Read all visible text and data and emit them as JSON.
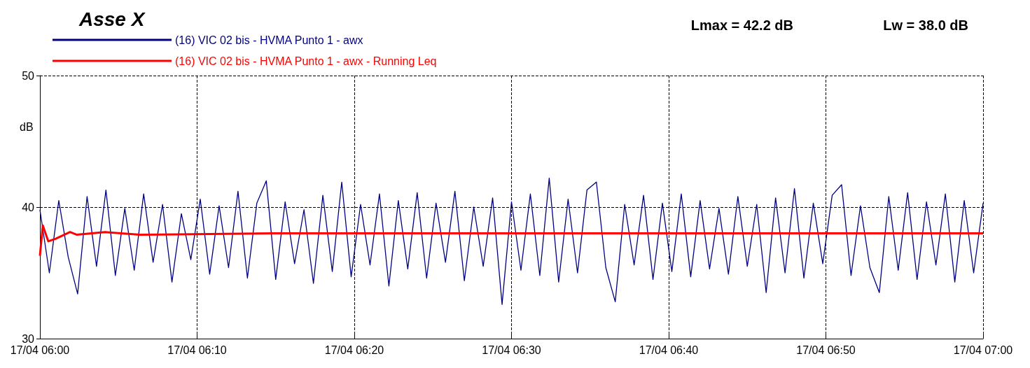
{
  "chart_data": {
    "type": "line",
    "title": "Asse X",
    "ylabel": "dB",
    "annotations": [
      "Lmax = 42.2 dB",
      "Lw = 38.0 dB"
    ],
    "xlim": [
      "--04-17T06:00",
      "--04-17T07:00"
    ],
    "xticks": [
      {
        "value": "--04-17T06:00",
        "label": "17/04 06:00"
      },
      {
        "value": "--04-17T06:10",
        "label": "17/04 06:10"
      },
      {
        "value": "--04-17T06:20",
        "label": "17/04 06:20"
      },
      {
        "value": "--04-17T06:30",
        "label": "17/04 06:30"
      },
      {
        "value": "--04-17T06:40",
        "label": "17/04 06:40"
      },
      {
        "value": "--04-17T06:50",
        "label": "17/04 06:50"
      },
      {
        "value": "--04-17T07:00",
        "label": "17/04 07:00"
      }
    ],
    "ylim": [
      30,
      50
    ],
    "yticks": [
      30,
      40,
      50
    ],
    "grid": true,
    "legend": "top left",
    "series": [
      {
        "name": "(16) VIC 02 bis - HVMA Punto 1 - awx",
        "color": "#000080",
        "x": [
          "--04-17T06:00:00",
          "--04-17T06:00:36",
          "--04-17T06:01:12",
          "--04-17T06:01:48",
          "--04-17T06:02:24",
          "--04-17T06:03:00",
          "--04-17T06:03:36",
          "--04-17T06:04:12",
          "--04-17T06:04:48",
          "--04-17T06:05:24",
          "--04-17T06:06:00",
          "--04-17T06:06:36",
          "--04-17T06:07:12",
          "--04-17T06:07:48",
          "--04-17T06:08:24",
          "--04-17T06:09:00",
          "--04-17T06:09:36",
          "--04-17T06:10:12",
          "--04-17T06:10:48",
          "--04-17T06:11:24",
          "--04-17T06:12:00",
          "--04-17T06:12:36",
          "--04-17T06:13:12",
          "--04-17T06:13:48",
          "--04-17T06:14:24",
          "--04-17T06:15:00",
          "--04-17T06:15:36",
          "--04-17T06:16:12",
          "--04-17T06:16:48",
          "--04-17T06:17:24",
          "--04-17T06:18:00",
          "--04-17T06:18:36",
          "--04-17T06:19:12",
          "--04-17T06:19:48",
          "--04-17T06:20:24",
          "--04-17T06:21:00",
          "--04-17T06:21:36",
          "--04-17T06:22:12",
          "--04-17T06:22:48",
          "--04-17T06:23:24",
          "--04-17T06:24:00",
          "--04-17T06:24:36",
          "--04-17T06:25:12",
          "--04-17T06:25:48",
          "--04-17T06:26:24",
          "--04-17T06:27:00",
          "--04-17T06:27:36",
          "--04-17T06:28:12",
          "--04-17T06:28:48",
          "--04-17T06:29:24",
          "--04-17T06:30:00",
          "--04-17T06:30:36",
          "--04-17T06:31:12",
          "--04-17T06:31:48",
          "--04-17T06:32:24",
          "--04-17T06:33:00",
          "--04-17T06:33:36",
          "--04-17T06:34:12",
          "--04-17T06:34:48",
          "--04-17T06:35:24",
          "--04-17T06:36:00",
          "--04-17T06:36:36",
          "--04-17T06:37:12",
          "--04-17T06:37:48",
          "--04-17T06:38:24",
          "--04-17T06:39:00",
          "--04-17T06:39:36",
          "--04-17T06:40:12",
          "--04-17T06:40:48",
          "--04-17T06:41:24",
          "--04-17T06:42:00",
          "--04-17T06:42:36",
          "--04-17T06:43:12",
          "--04-17T06:43:48",
          "--04-17T06:44:24",
          "--04-17T06:45:00",
          "--04-17T06:45:36",
          "--04-17T06:46:12",
          "--04-17T06:46:48",
          "--04-17T06:47:24",
          "--04-17T06:48:00",
          "--04-17T06:48:36",
          "--04-17T06:49:12",
          "--04-17T06:49:48",
          "--04-17T06:50:24",
          "--04-17T06:51:00",
          "--04-17T06:51:36",
          "--04-17T06:52:12",
          "--04-17T06:52:48",
          "--04-17T06:53:24",
          "--04-17T06:54:00",
          "--04-17T06:54:36",
          "--04-17T06:55:12",
          "--04-17T06:55:48",
          "--04-17T06:56:24",
          "--04-17T06:57:00",
          "--04-17T06:57:36",
          "--04-17T06:58:12",
          "--04-17T06:58:48",
          "--04-17T06:59:24",
          "--04-17T07:00:00"
        ],
        "values": [
          39.8,
          35.0,
          40.5,
          36.2,
          33.4,
          40.8,
          35.5,
          41.3,
          34.8,
          39.9,
          35.2,
          41.0,
          35.8,
          40.2,
          34.3,
          39.5,
          36.0,
          40.6,
          34.9,
          40.1,
          35.4,
          41.2,
          34.6,
          40.3,
          42.0,
          34.5,
          40.4,
          35.7,
          39.8,
          34.2,
          40.9,
          35.1,
          41.9,
          34.7,
          40.2,
          35.6,
          41.0,
          34.0,
          40.5,
          35.3,
          41.1,
          34.6,
          40.3,
          35.8,
          41.2,
          34.4,
          40.0,
          35.5,
          40.7,
          32.6,
          40.4,
          35.2,
          41.0,
          34.8,
          42.2,
          34.3,
          40.6,
          35.0,
          41.3,
          41.9,
          35.4,
          32.8,
          40.2,
          35.6,
          40.9,
          34.5,
          40.3,
          35.1,
          41.0,
          34.7,
          40.5,
          35.3,
          39.9,
          34.9,
          40.8,
          35.5,
          40.2,
          33.5,
          40.7,
          35.0,
          41.4,
          34.6,
          40.3,
          35.7,
          40.9,
          41.7,
          34.8,
          40.1,
          35.4,
          33.5,
          40.8,
          35.2,
          41.1,
          34.5,
          40.4,
          35.6,
          41.0,
          34.3,
          40.5,
          35.0,
          40.3
        ]
      },
      {
        "name": "(16) VIC 02 bis - HVMA Punto 1 - awx - Running Leq",
        "color": "#ff0000",
        "x": [
          "--04-17T06:00:00",
          "--04-17T06:00:11",
          "--04-17T06:00:32",
          "--04-17T06:01:01",
          "--04-17T06:01:55",
          "--04-17T06:02:20",
          "--04-17T06:04:08",
          "--04-17T06:06:22",
          "--04-17T06:14:49",
          "--04-17T07:00:00"
        ],
        "values": [
          36.3,
          38.6,
          37.4,
          37.6,
          38.1,
          37.9,
          38.1,
          37.9,
          38.0,
          38.0
        ]
      }
    ]
  }
}
